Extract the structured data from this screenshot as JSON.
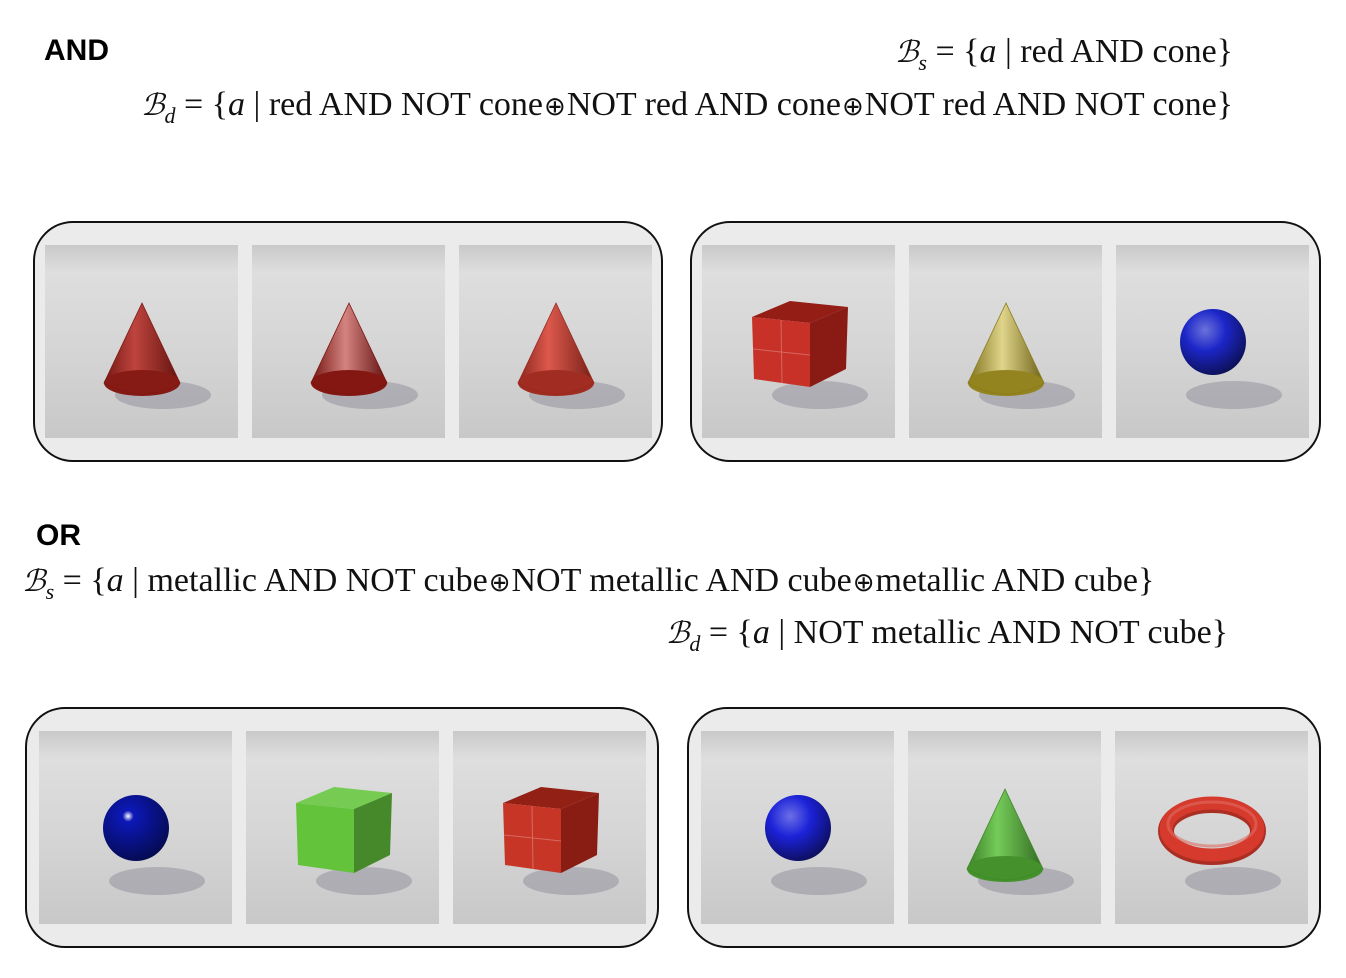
{
  "and_section": {
    "heading": "AND",
    "bs": {
      "symbol": "ℬ",
      "sub": "s",
      "eq": " = {",
      "var": "a",
      "bar": " | ",
      "terms": [
        "red AND cone"
      ],
      "close": "}"
    },
    "bd": {
      "symbol": "ℬ",
      "sub": "d",
      "eq": " = {",
      "var": "a",
      "bar": " | ",
      "terms": [
        "red AND NOT cone",
        "NOT red AND cone",
        "NOT red AND NOT cone"
      ],
      "close": "}"
    },
    "panels": [
      {
        "objects": [
          {
            "shape": "cone",
            "color": "#b3231c",
            "material": "rubber"
          },
          {
            "shape": "cone",
            "color": "#b01e18",
            "material": "metal"
          },
          {
            "shape": "cone",
            "color": "#d63a2c",
            "material": "rubber"
          }
        ]
      },
      {
        "objects": [
          {
            "shape": "cube",
            "color": "#c5261d",
            "material": "metal"
          },
          {
            "shape": "cone",
            "color": "#c4b02a",
            "material": "metal"
          },
          {
            "shape": "sphere",
            "color": "#1c26c8",
            "material": "rubber"
          }
        ]
      }
    ]
  },
  "or_section": {
    "heading": "OR",
    "bs": {
      "symbol": "ℬ",
      "sub": "s",
      "eq": " = {",
      "var": "a",
      "bar": " | ",
      "terms": [
        "metallic AND NOT cube",
        "NOT metallic AND cube",
        "metallic AND cube"
      ],
      "close": "}"
    },
    "bd": {
      "symbol": "ℬ",
      "sub": "d",
      "eq": " = {",
      "var": "a",
      "bar": " | ",
      "terms": [
        "NOT metallic AND NOT cube"
      ],
      "close": "}"
    },
    "panels": [
      {
        "objects": [
          {
            "shape": "sphere",
            "color": "#0c18b8",
            "material": "metal"
          },
          {
            "shape": "cube",
            "color": "#63c43c",
            "material": "rubber"
          },
          {
            "shape": "cube",
            "color": "#c42a1c",
            "material": "metal"
          }
        ]
      },
      {
        "objects": [
          {
            "shape": "sphere",
            "color": "#1c22d8",
            "material": "rubber"
          },
          {
            "shape": "cone",
            "color": "#5cc23c",
            "material": "rubber"
          },
          {
            "shape": "torus",
            "color": "#d63a2c",
            "material": "rubber"
          }
        ]
      }
    ]
  },
  "operator_symbol": "⊕"
}
